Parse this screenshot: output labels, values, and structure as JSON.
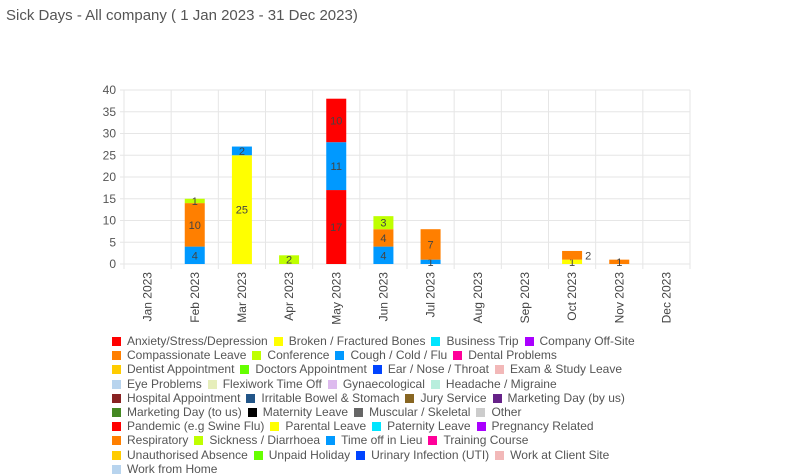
{
  "title": "Sick Days - All company ( 1 Jan 2023 - 31 Dec 2023)",
  "chart_data": {
    "type": "bar",
    "stacked": true,
    "title": "Sick Days - All company ( 1 Jan 2023 - 31 Dec 2023)",
    "xlabel": "",
    "ylabel": "",
    "ylim": [
      0,
      40
    ],
    "yticks": [
      0,
      5,
      10,
      15,
      20,
      25,
      30,
      35,
      40
    ],
    "grid": true,
    "legend": "bottom",
    "categories": [
      "Jan 2023",
      "Feb 2023",
      "Mar 2023",
      "Apr 2023",
      "May 2023",
      "Jun 2023",
      "Jul 2023",
      "Aug 2023",
      "Sep 2023",
      "Oct 2023",
      "Nov 2023",
      "Dec 2023"
    ],
    "series": [
      {
        "name": "Anxiety/Stress/Depression",
        "color": "#ff0000",
        "values": [
          0,
          0,
          0,
          0,
          17,
          0,
          0,
          0,
          0,
          0,
          0,
          0
        ]
      },
      {
        "name": "Broken / Fractured Bones",
        "color": "#ffff00",
        "values": [
          0,
          0,
          25,
          0,
          0,
          0,
          0,
          0,
          0,
          1,
          0,
          0
        ]
      },
      {
        "name": "Cough / Cold / Flu",
        "color": "#0099ff",
        "values": [
          0,
          4,
          2,
          0,
          11,
          4,
          1,
          0,
          0,
          0,
          0,
          0
        ]
      },
      {
        "name": "Respiratory",
        "color": "#ff7f00",
        "values": [
          0,
          10,
          0,
          0,
          0,
          4,
          7,
          0,
          0,
          2,
          1,
          0
        ]
      },
      {
        "name": "Sickness / Diarrhoea",
        "color": "#bfff00",
        "values": [
          0,
          1,
          0,
          2,
          0,
          3,
          0,
          0,
          0,
          0,
          0,
          0
        ]
      },
      {
        "name": "Pandemic (e.g Swine Flu)",
        "color": "#ff0000",
        "values": [
          0,
          0,
          0,
          0,
          10,
          0,
          0,
          0,
          0,
          0,
          0,
          0
        ]
      }
    ]
  },
  "legend": [
    {
      "label": "Anxiety/Stress/Depression",
      "color": "#ff0000"
    },
    {
      "label": "Broken / Fractured Bones",
      "color": "#ffff00"
    },
    {
      "label": "Business Trip",
      "color": "#00e5ff"
    },
    {
      "label": "Company Off-Site",
      "color": "#aa00ff"
    },
    {
      "label": "Compassionate Leave",
      "color": "#ff7f00"
    },
    {
      "label": "Conference",
      "color": "#bfff00"
    },
    {
      "label": "Cough / Cold / Flu",
      "color": "#0099ff"
    },
    {
      "label": "Dental Problems",
      "color": "#ff0099"
    },
    {
      "label": "Dentist Appointment",
      "color": "#ffcc00"
    },
    {
      "label": "Doctors Appointment",
      "color": "#66ff00"
    },
    {
      "label": "Ear / Nose / Throat",
      "color": "#0044ff"
    },
    {
      "label": "Exam & Study Leave",
      "color": "#f2b8b8"
    },
    {
      "label": "Eye Problems",
      "color": "#b8d4ee"
    },
    {
      "label": "Flexiwork Time Off",
      "color": "#e6eebb"
    },
    {
      "label": "Gynaecological",
      "color": "#ddbbee"
    },
    {
      "label": "Headache / Migraine",
      "color": "#b8eedd"
    },
    {
      "label": "Hospital Appointment",
      "color": "#882222"
    },
    {
      "label": "Irritable Bowel & Stomach",
      "color": "#225588"
    },
    {
      "label": "Jury Service",
      "color": "#886622"
    },
    {
      "label": "Marketing Day (by us)",
      "color": "#662288"
    },
    {
      "label": "Marketing Day (to us)",
      "color": "#448822"
    },
    {
      "label": "Maternity Leave",
      "color": "#000000"
    },
    {
      "label": "Muscular / Skeletal",
      "color": "#666666"
    },
    {
      "label": "Other",
      "color": "#cccccc"
    },
    {
      "label": "Pandemic (e.g Swine Flu)",
      "color": "#ff0000"
    },
    {
      "label": "Parental Leave",
      "color": "#ffff00"
    },
    {
      "label": "Paternity Leave",
      "color": "#00e5ff"
    },
    {
      "label": "Pregnancy Related",
      "color": "#aa00ff"
    },
    {
      "label": "Respiratory",
      "color": "#ff7f00"
    },
    {
      "label": "Sickness / Diarrhoea",
      "color": "#bfff00"
    },
    {
      "label": "Time off in Lieu",
      "color": "#0099ff"
    },
    {
      "label": "Training Course",
      "color": "#ff0099"
    },
    {
      "label": "Unauthorised Absence",
      "color": "#ffcc00"
    },
    {
      "label": "Unpaid Holiday",
      "color": "#66ff00"
    },
    {
      "label": "Urinary Infection (UTI)",
      "color": "#0044ff"
    },
    {
      "label": "Work at Client Site",
      "color": "#f2b8b8"
    },
    {
      "label": "Work from Home",
      "color": "#b8d4ee"
    }
  ]
}
